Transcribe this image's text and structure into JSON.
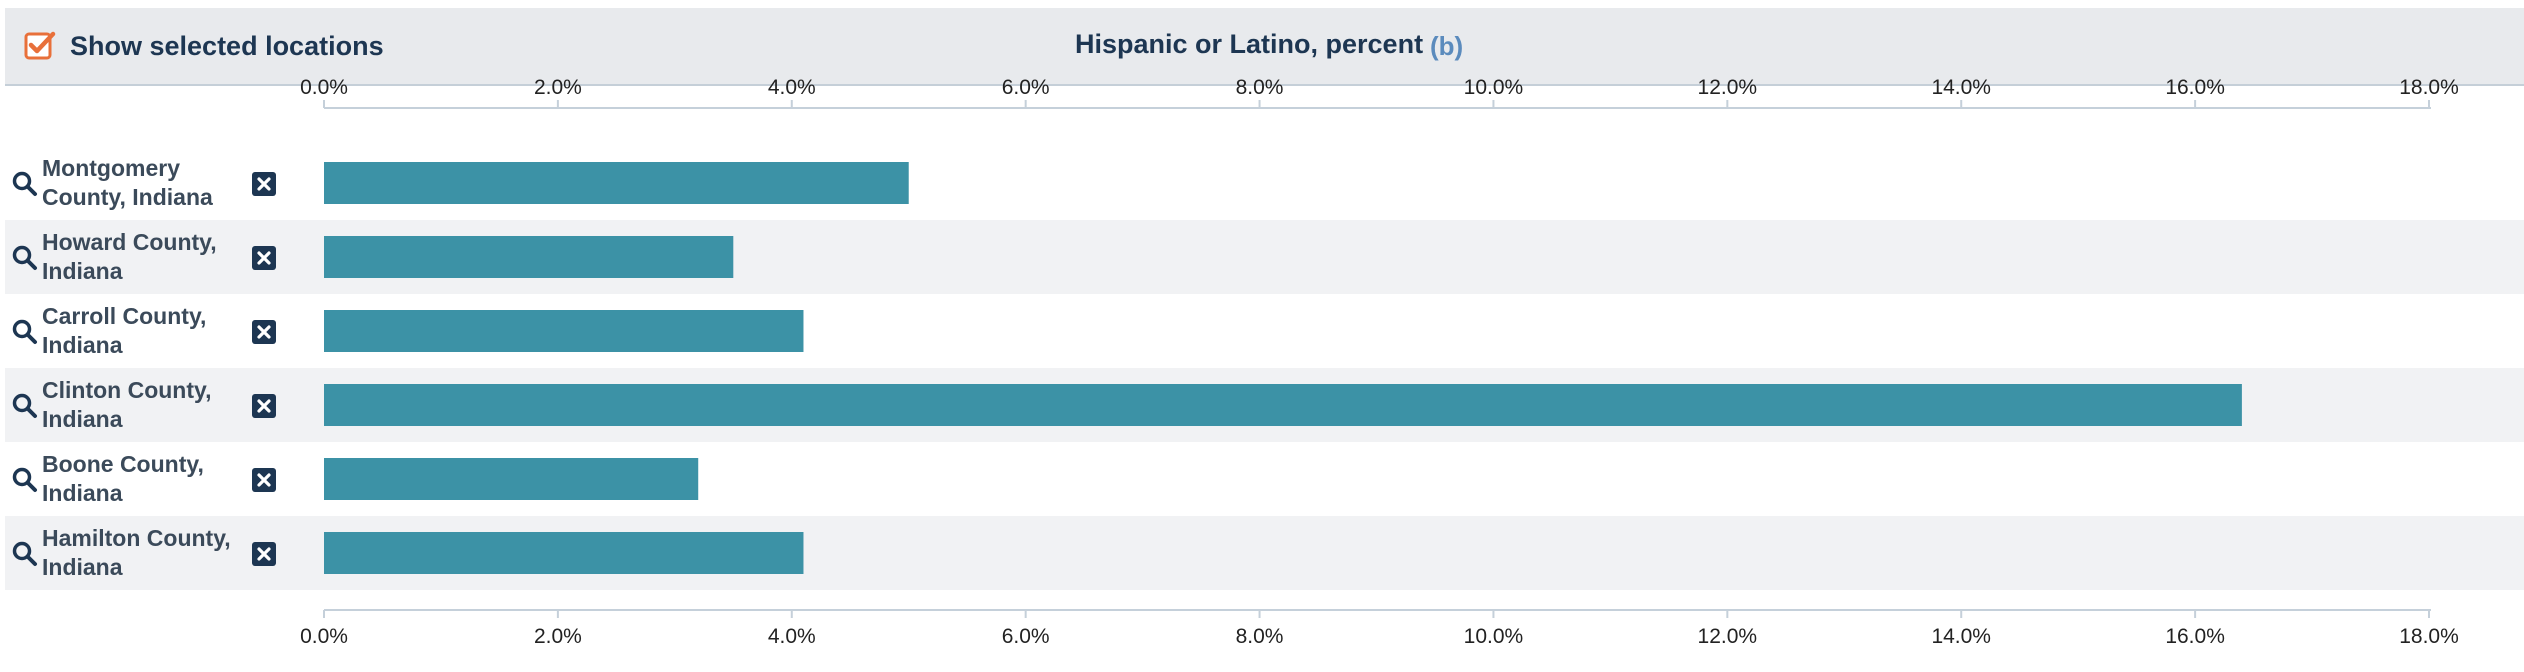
{
  "header": {
    "show_selected_label": "Show selected locations",
    "show_selected_checked": true,
    "title": "Hispanic or Latino, percent",
    "title_note": "(b)"
  },
  "colors": {
    "bar": "#3c92a6",
    "header_bg": "#e8eaed",
    "checkbox": "#e8703a",
    "text_dark": "#1d3652",
    "note": "#5b8bbd",
    "row_alt": "#f1f2f4"
  },
  "icons": {
    "checkbox": "checkbox-checked-icon",
    "search": "search-icon",
    "remove": "close-box-icon"
  },
  "chart_data": {
    "type": "bar",
    "orientation": "horizontal",
    "title": "Hispanic or Latino, percent",
    "categories": [
      "Montgomery County, Indiana",
      "Howard County, Indiana",
      "Carroll County, Indiana",
      "Clinton County, Indiana",
      "Boone County, Indiana",
      "Hamilton County, Indiana"
    ],
    "values": [
      5.0,
      3.5,
      4.1,
      16.4,
      3.2,
      4.1
    ],
    "xlim": [
      0,
      18
    ],
    "ticks": [
      0,
      2,
      4,
      6,
      8,
      10,
      12,
      14,
      16,
      18
    ],
    "tick_labels": [
      "0.0%",
      "2.0%",
      "4.0%",
      "6.0%",
      "8.0%",
      "10.0%",
      "12.0%",
      "14.0%",
      "16.0%",
      "18.0%"
    ],
    "axis_position": "top and bottom",
    "grid": false,
    "legend": "none"
  }
}
